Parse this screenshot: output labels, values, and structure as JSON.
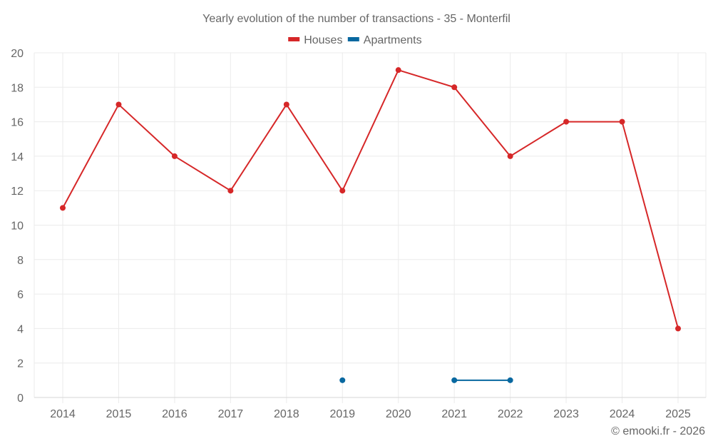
{
  "chart_data": {
    "type": "line",
    "title": "Yearly evolution of the number of transactions - 35 - Monterfil",
    "xlabel": "",
    "ylabel": "",
    "categories": [
      "2014",
      "2015",
      "2016",
      "2017",
      "2018",
      "2019",
      "2020",
      "2021",
      "2022",
      "2023",
      "2024",
      "2025"
    ],
    "ylim": [
      0,
      20
    ],
    "yticks": [
      "0",
      "2",
      "4",
      "6",
      "8",
      "10",
      "12",
      "14",
      "16",
      "18",
      "20"
    ],
    "grid": true,
    "legend_position": "top-center",
    "series": [
      {
        "name": "Houses",
        "color": "#d62728",
        "values": [
          11,
          17,
          14,
          12,
          17,
          12,
          19,
          18,
          14,
          16,
          16,
          4
        ]
      },
      {
        "name": "Apartments",
        "color": "#0868a0",
        "values": [
          null,
          null,
          null,
          null,
          null,
          1,
          null,
          1,
          1,
          null,
          null,
          null
        ]
      }
    ],
    "credit": "© emooki.fr - 2026"
  }
}
